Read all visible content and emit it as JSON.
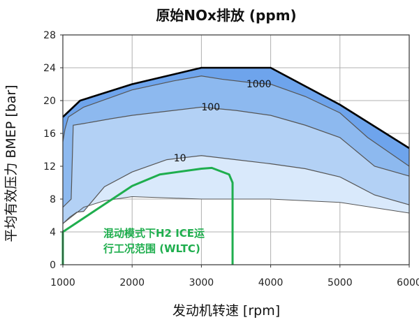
{
  "chart_data": {
    "type": "area",
    "title": "原始NOx排放 (ppm)",
    "xlabel": "发动机转速 [rpm]",
    "ylabel": "平均有效压力 BMEP [bar]",
    "xlim": [
      1000,
      6000
    ],
    "ylim": [
      0,
      28
    ],
    "x_ticks": [
      "1000",
      "2000",
      "3000",
      "4000",
      "5000",
      "6000"
    ],
    "y_ticks": [
      "0",
      "4",
      "8",
      "12",
      "16",
      "20",
      "24",
      "28"
    ],
    "grid": true,
    "colors": {
      "band_low": "#d9e9fb",
      "band_mid": "#b3d1f5",
      "band_high": "#8db9ef",
      "band_top": "#6ea4ec",
      "full_load_line": "#000000",
      "contour_line": "#555555",
      "wltc": "#1fae4e",
      "grid": "#b0b0b0"
    },
    "full_load_curve": {
      "x": [
        1000,
        1250,
        2000,
        3000,
        4000,
        5000,
        6000
      ],
      "y": [
        18.0,
        20.0,
        22.0,
        24.0,
        24.0,
        19.5,
        14.2
      ]
    },
    "lower_boundary": {
      "x": [
        1000,
        1300,
        1600,
        2000,
        3000,
        4000,
        5000,
        6000
      ],
      "y": [
        5.0,
        7.0,
        7.8,
        8.3,
        8.0,
        8.0,
        7.6,
        6.3
      ]
    },
    "contours": [
      {
        "label": "1000",
        "x": [
          1000,
          1030,
          1080,
          1300,
          2000,
          2600,
          3000,
          3300,
          3700,
          4000,
          4500,
          5000,
          5400,
          6000
        ],
        "y": [
          15.0,
          16.5,
          18.0,
          19.2,
          21.3,
          22.4,
          23.0,
          22.6,
          22.2,
          22.0,
          20.5,
          18.5,
          15.5,
          12.0
        ]
      },
      {
        "label": "100",
        "x": [
          1000,
          1120,
          1150,
          1300,
          1700,
          2000,
          2500,
          3000,
          3500,
          4000,
          4500,
          5000,
          5500,
          6000
        ],
        "y": [
          7.0,
          8.0,
          17.0,
          17.2,
          17.8,
          18.2,
          18.7,
          19.2,
          18.8,
          18.2,
          17.0,
          15.5,
          12.0,
          10.8
        ]
      },
      {
        "label": "10",
        "x": [
          1000,
          1100,
          1200,
          1300,
          1350,
          1600,
          2000,
          2500,
          3000,
          3500,
          4000,
          4500,
          5000,
          5500,
          6000
        ],
        "y": [
          5.0,
          5.8,
          6.4,
          6.5,
          7.0,
          9.5,
          11.3,
          12.8,
          13.3,
          12.8,
          12.3,
          11.7,
          10.7,
          8.5,
          7.3
        ]
      }
    ],
    "wltc_region": {
      "label_line1": "混动模式下H2 ICE运",
      "label_line2": "行工况范围 (WLTC)",
      "x": [
        1000,
        1000,
        2000,
        2400,
        3000,
        3150,
        3400,
        3450,
        3450
      ],
      "y": [
        0,
        4.0,
        9.6,
        11.0,
        11.7,
        11.8,
        11.0,
        10.0,
        0
      ]
    }
  }
}
